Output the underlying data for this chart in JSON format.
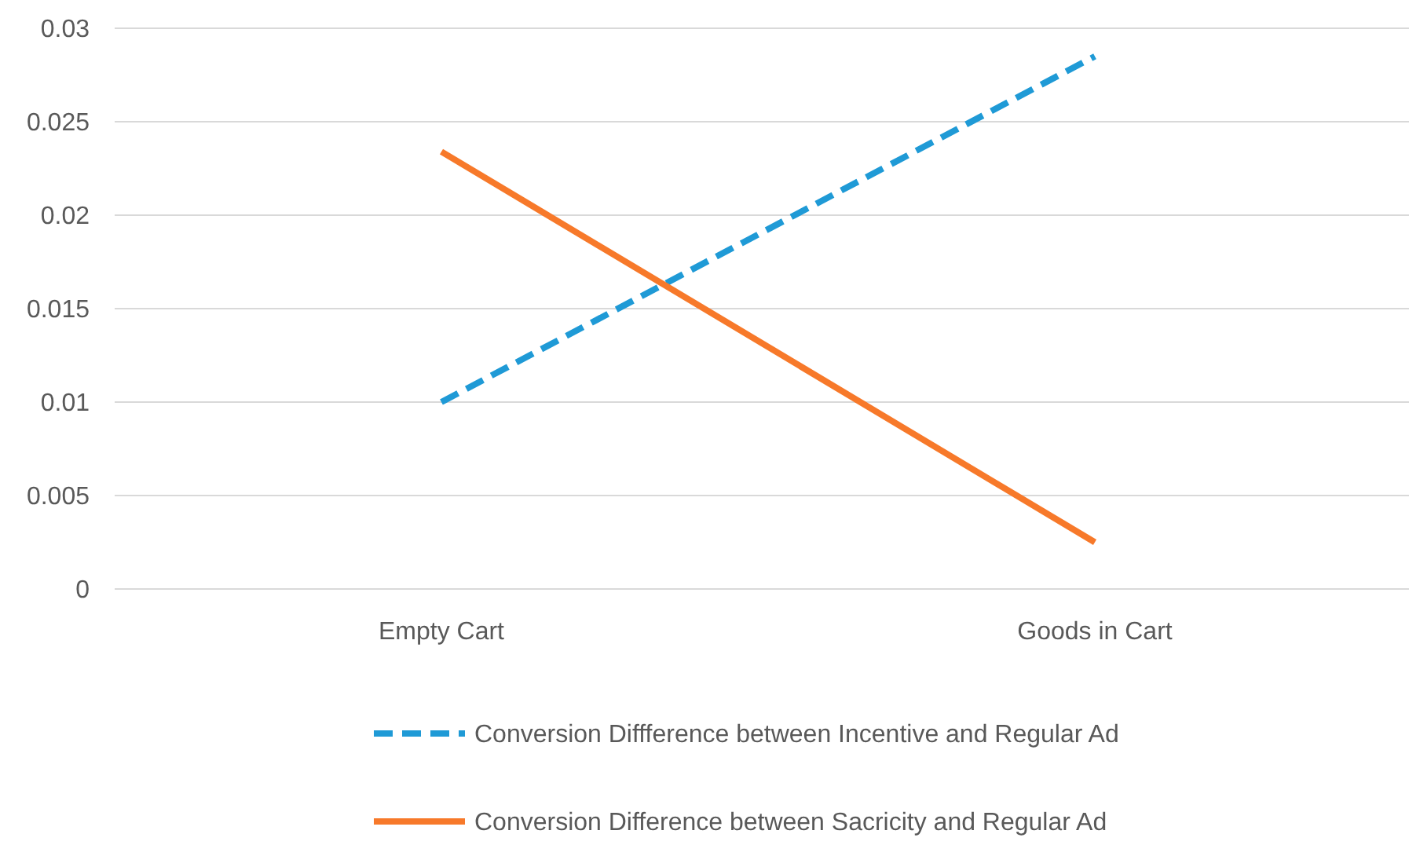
{
  "chart_data": {
    "type": "line",
    "categories": [
      "Empty Cart",
      "Goods in Cart"
    ],
    "series": [
      {
        "name": "Conversion Diffference between Incentive and Regular Ad",
        "color": "#1f9ad6",
        "values": [
          0.01,
          0.0285
        ],
        "line_style": "dashed"
      },
      {
        "name": "Conversion Difference between Sacricity and Regular Ad",
        "color": "#f7792a",
        "values": [
          0.0234,
          0.0025
        ],
        "line_style": "solid"
      }
    ],
    "ylim": [
      0,
      0.03
    ],
    "yticks": [
      0,
      0.005,
      0.01,
      0.015,
      0.02,
      0.025,
      0.03
    ],
    "grid": "y",
    "legend": "bottom",
    "marker": "none"
  }
}
